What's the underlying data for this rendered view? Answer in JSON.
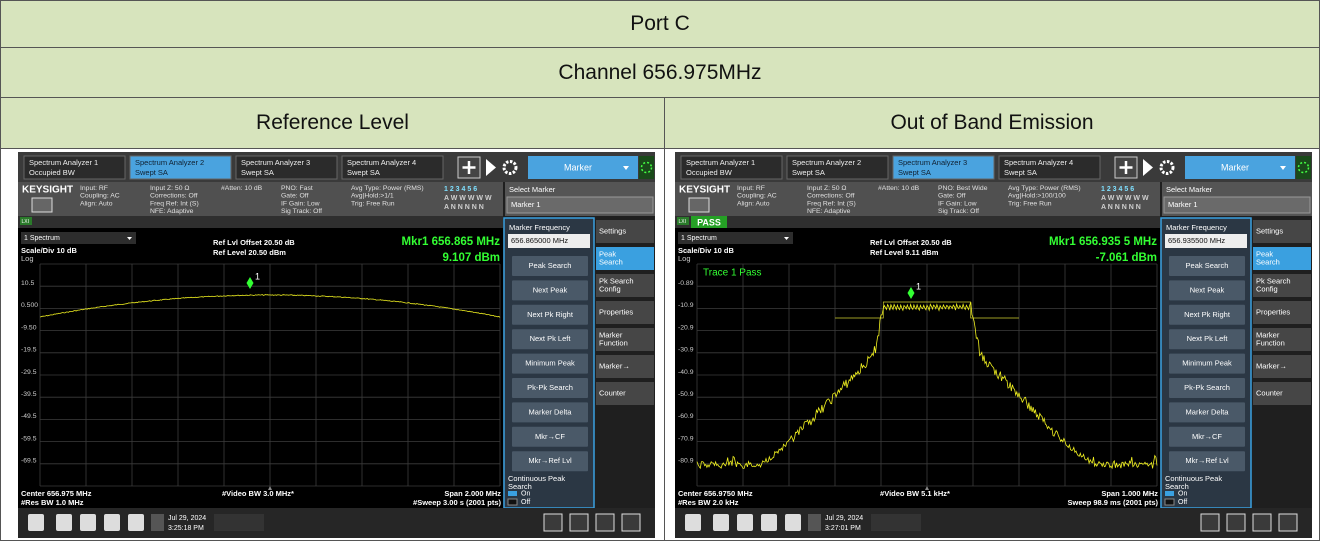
{
  "header": {
    "title": "Port C",
    "channel": "Channel 656.975MHz"
  },
  "columns": [
    "Reference Level",
    "Out of Band Emission"
  ],
  "screens": [
    {
      "tabs": [
        {
          "name": "Spectrum Analyzer 1",
          "mode": "Occupied BW",
          "active": false
        },
        {
          "name": "Spectrum Analyzer 2",
          "mode": "Swept SA",
          "active": true
        },
        {
          "name": "Spectrum Analyzer 3",
          "mode": "Swept SA",
          "active": false
        },
        {
          "name": "Spectrum Analyzer 4",
          "mode": "Swept SA",
          "active": false
        }
      ],
      "menu": "Marker",
      "brand": "KEYSIGHT",
      "status_columns": [
        [
          "Input: RF",
          "Coupling: AC",
          "Align: Auto"
        ],
        [
          "Input Z: 50 Ω",
          "Corrections: Off",
          "Freq Ref: Int (S)",
          "NFE: Adaptive"
        ],
        [
          "#Atten: 10 dB"
        ],
        [
          "PNO: Fast",
          "Gate: Off",
          "IF Gain: Low",
          "Sig Track: Off"
        ],
        [
          "Avg Type: Power (RMS)",
          "Avg|Hold:>1/1",
          "Trig: Free Run"
        ]
      ],
      "trace_rows": [
        "1 2 3 4 5 6",
        "A W W W W W",
        "A N N N N N"
      ],
      "select_marker": "Select Marker",
      "marker_choice": "Marker 1",
      "badge": "LXI",
      "window": "1 Spectrum",
      "scale": "Scale/Div 10 dB",
      "log": "Log",
      "ref_offset": "Ref Lvl Offset 20.50 dB",
      "ref_level": "Ref Level 20.50 dBm",
      "marker_readout": "Mkr1 656.865 MHz",
      "marker_value": "9.107 dBm",
      "marker_label": "1",
      "y_labels": [
        "10.5",
        "0.500",
        "-9.50",
        "-19.5",
        "-29.5",
        "-39.5",
        "-49.5",
        "-59.5",
        "-69.5"
      ],
      "footer": {
        "center": "Center 656.975 MHz",
        "vbw": "#Video BW 3.0 MHz*",
        "span": "Span 2.000 MHz",
        "rbw": "#Res BW 1.0 MHz",
        "sweep": "#Sweep 3.00 s (2001 pts)"
      },
      "panel": {
        "title": "Marker Frequency",
        "value": "656.865000 MHz",
        "buttons": [
          "Peak Search",
          "Next Peak",
          "Next Pk Right",
          "Next Pk Left",
          "Minimum Peak",
          "Pk-Pk Search",
          "Marker Delta",
          "Mkr→CF",
          "Mkr→Ref Lvl"
        ],
        "toggle": [
          "Continuous Peak",
          "Search"
        ],
        "on": "On",
        "off": "Off"
      },
      "side_tabs": [
        [
          "Settings"
        ],
        [
          "Peak",
          "Search"
        ],
        [
          "Pk Search",
          "Config"
        ],
        [
          "Properties"
        ],
        [
          "Marker",
          "Function"
        ],
        [
          "Marker→"
        ],
        [
          "Counter"
        ]
      ],
      "date": "Jul 29, 2024",
      "time": "3:25:18 PM"
    },
    {
      "tabs": [
        {
          "name": "Spectrum Analyzer 1",
          "mode": "Occupied BW",
          "active": false
        },
        {
          "name": "Spectrum Analyzer 2",
          "mode": "Swept SA",
          "active": false
        },
        {
          "name": "Spectrum Analyzer 3",
          "mode": "Swept SA",
          "active": true
        },
        {
          "name": "Spectrum Analyzer 4",
          "mode": "Swept SA",
          "active": false
        }
      ],
      "menu": "Marker",
      "brand": "KEYSIGHT",
      "status_columns": [
        [
          "Input: RF",
          "Coupling: AC",
          "Align: Auto"
        ],
        [
          "Input Z: 50 Ω",
          "Corrections: Off",
          "Freq Ref: Int (S)",
          "NFE: Adaptive"
        ],
        [
          "#Atten: 10 dB"
        ],
        [
          "PNO: Best Wide",
          "Gate: Off",
          "IF Gain: Low",
          "Sig Track: Off"
        ],
        [
          "Avg Type: Power (RMS)",
          "Avg|Hold:>100/100",
          "Trig: Free Run"
        ]
      ],
      "trace_rows": [
        "1 2 3 4 5 6",
        "A W W W W W",
        "A N N N N N"
      ],
      "select_marker": "Select Marker",
      "marker_choice": "Marker 1",
      "badge": "LXI",
      "pass": "PASS",
      "window": "1 Spectrum",
      "scale": "Scale/Div 10 dB",
      "log": "Log",
      "trace_status": "Trace 1 Pass",
      "ref_offset": "Ref Lvl Offset 20.50 dB",
      "ref_level": "Ref Level 9.11 dBm",
      "marker_readout": "Mkr1 656.935 5 MHz",
      "marker_value": "-7.061 dBm",
      "marker_label": "1",
      "y_labels": [
        "-0.89",
        "-10.9",
        "-20.9",
        "-30.9",
        "-40.9",
        "-50.9",
        "-60.9",
        "-70.9",
        "-80.9"
      ],
      "footer": {
        "center": "Center 656.9750 MHz",
        "vbw": "#Video BW 5.1 kHz*",
        "span": "Span 1.000 MHz",
        "rbw": "#Res BW 2.0 kHz",
        "sweep": "Sweep 98.9 ms (2001 pts)"
      },
      "panel": {
        "title": "Marker Frequency",
        "value": "656.935500 MHz",
        "buttons": [
          "Peak Search",
          "Next Peak",
          "Next Pk Right",
          "Next Pk Left",
          "Minimum Peak",
          "Pk-Pk Search",
          "Marker Delta",
          "Mkr→CF",
          "Mkr→Ref Lvl"
        ],
        "toggle": [
          "Continuous Peak",
          "Search"
        ],
        "on": "On",
        "off": "Off"
      },
      "side_tabs": [
        [
          "Settings"
        ],
        [
          "Peak",
          "Search"
        ],
        [
          "Pk Search",
          "Config"
        ],
        [
          "Properties"
        ],
        [
          "Marker",
          "Function"
        ],
        [
          "Marker→"
        ],
        [
          "Counter"
        ]
      ],
      "date": "Jul 29, 2024",
      "time": "3:27:01 PM"
    }
  ]
}
